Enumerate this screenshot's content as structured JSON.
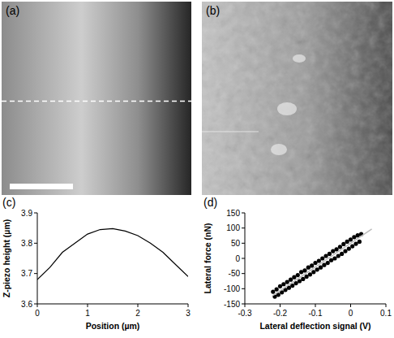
{
  "images": [
    {
      "panel": "(a)"
    },
    {
      "panel": "(b)"
    }
  ],
  "chart_data": [
    {
      "panel": "(c)",
      "type": "line",
      "xlabel": "Position (µm)",
      "ylabel": "Z-piezo height (µm)",
      "xlim": [
        0,
        3
      ],
      "xticks": [
        0,
        1,
        2,
        3
      ],
      "ylim": [
        3.6,
        3.9
      ],
      "yticks": [
        3.6,
        3.7,
        3.8,
        3.9
      ],
      "series": [
        {
          "color": "#000000",
          "x": [
            0,
            0.25,
            0.5,
            0.75,
            1,
            1.25,
            1.5,
            1.75,
            2,
            2.25,
            2.5,
            2.75,
            3
          ],
          "values": [
            3.68,
            3.72,
            3.77,
            3.8,
            3.83,
            3.845,
            3.848,
            3.84,
            3.825,
            3.8,
            3.77,
            3.73,
            3.69
          ]
        }
      ]
    },
    {
      "panel": "(d)",
      "type": "scatter",
      "xlabel": "Lateral deflection signal (V)",
      "ylabel": "Lateral force (nN)",
      "xlim": [
        -0.3,
        0.1
      ],
      "xticks": [
        -0.3,
        -0.2,
        -0.1,
        0,
        0.1
      ],
      "ylim": [
        -150,
        150
      ],
      "yticks": [
        -150,
        -100,
        -50,
        0,
        50,
        100,
        150
      ],
      "series": [
        {
          "type": "scatter",
          "color": "#000000",
          "marker": "circle",
          "x": [
            -0.22,
            -0.21,
            -0.2,
            -0.19,
            -0.18,
            -0.17,
            -0.16,
            -0.15,
            -0.14,
            -0.13,
            -0.12,
            -0.11,
            -0.1,
            -0.09,
            -0.08,
            -0.07,
            -0.06,
            -0.05,
            -0.04,
            -0.03,
            -0.02,
            -0.01,
            0,
            0.01,
            0.02,
            0.03,
            -0.215,
            -0.205,
            -0.195,
            -0.185,
            -0.175,
            -0.165,
            -0.155,
            -0.145,
            -0.135,
            -0.125,
            -0.115,
            -0.105,
            -0.095,
            -0.085,
            -0.075,
            -0.065,
            -0.055,
            -0.045,
            -0.035,
            -0.025,
            -0.015,
            -0.005,
            0.005,
            0.015,
            0.025
          ],
          "values": [
            -110,
            -102,
            -92,
            -85,
            -78,
            -70,
            -62,
            -55,
            -45,
            -40,
            -30,
            -24,
            -15,
            -8,
            0,
            8,
            15,
            24,
            30,
            38,
            47,
            55,
            62,
            70,
            76,
            80,
            -126,
            -120,
            -112,
            -104,
            -97,
            -90,
            -82,
            -75,
            -68,
            -60,
            -53,
            -45,
            -37,
            -30,
            -22,
            -15,
            -6,
            0,
            8,
            15,
            24,
            32,
            40,
            48,
            55
          ]
        },
        {
          "type": "line",
          "color": "#bdbdbd",
          "x": [
            -0.22,
            0.06
          ],
          "values": [
            -122,
            97
          ]
        }
      ]
    }
  ]
}
